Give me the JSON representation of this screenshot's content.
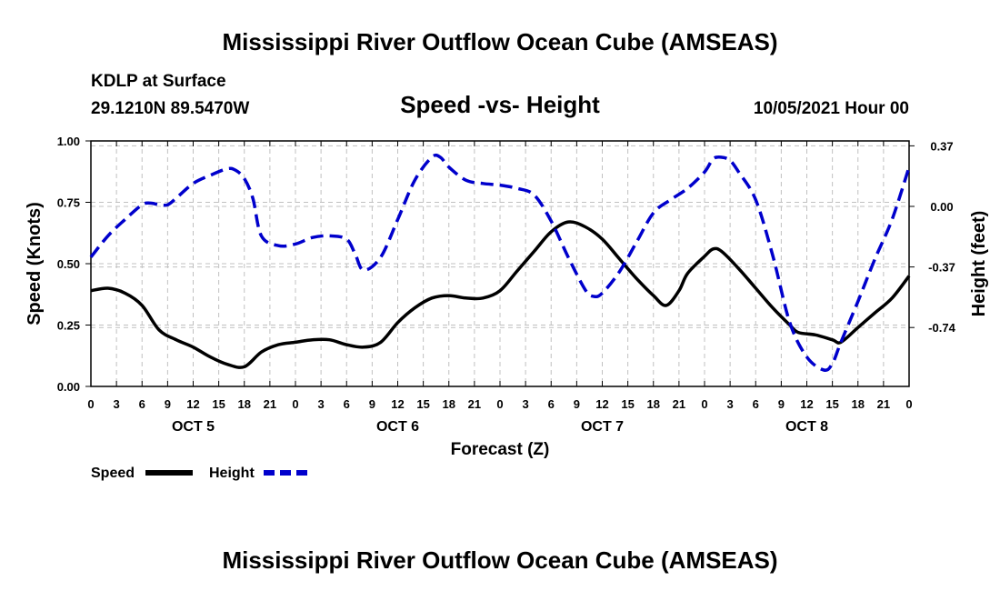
{
  "title_top": "Mississippi River Outflow Ocean Cube (AMSEAS)",
  "title_bottom": "Mississippi River Outflow Ocean Cube (AMSEAS)",
  "station": "KDLP at Surface",
  "coords": "29.1210N  89.5470W",
  "subtitle": "Speed -vs- Height",
  "datetime": "10/05/2021 Hour 00",
  "colors": {
    "speed": "#000000",
    "height": "#0000cc",
    "grid": "#c0c0c0"
  },
  "chart_data": {
    "type": "line",
    "title": "Speed -vs- Height",
    "xlabel": "Forecast (Z)",
    "ylabel_left": "Speed (Knots)",
    "ylabel_right": "Height (feet)",
    "x_unit": "hours from OCT 5 00Z",
    "xlim": [
      0,
      96
    ],
    "ylim_left": [
      0,
      1
    ],
    "ylim_right": [
      -1.1,
      0.4
    ],
    "left_ticks": [
      {
        "value": 0.0,
        "label": "0.00"
      },
      {
        "value": 0.25,
        "label": "0.25"
      },
      {
        "value": 0.5,
        "label": "0.50"
      },
      {
        "value": 0.75,
        "label": "0.75"
      },
      {
        "value": 1.0,
        "label": "1.00"
      }
    ],
    "right_ticks": [
      {
        "value": 0.37,
        "label": "0.37"
      },
      {
        "value": 0.0,
        "label": "0.00"
      },
      {
        "value": -0.37,
        "label": "-0.37"
      },
      {
        "value": -0.74,
        "label": "-0.74"
      }
    ],
    "x_ticks": [
      {
        "x": 0,
        "label": "0"
      },
      {
        "x": 3,
        "label": "3"
      },
      {
        "x": 6,
        "label": "6"
      },
      {
        "x": 9,
        "label": "9"
      },
      {
        "x": 12,
        "label": "12"
      },
      {
        "x": 15,
        "label": "15"
      },
      {
        "x": 18,
        "label": "18"
      },
      {
        "x": 21,
        "label": "21"
      },
      {
        "x": 24,
        "label": "0"
      },
      {
        "x": 27,
        "label": "3"
      },
      {
        "x": 30,
        "label": "6"
      },
      {
        "x": 33,
        "label": "9"
      },
      {
        "x": 36,
        "label": "12"
      },
      {
        "x": 39,
        "label": "15"
      },
      {
        "x": 42,
        "label": "18"
      },
      {
        "x": 45,
        "label": "21"
      },
      {
        "x": 48,
        "label": "0"
      },
      {
        "x": 51,
        "label": "3"
      },
      {
        "x": 54,
        "label": "6"
      },
      {
        "x": 57,
        "label": "9"
      },
      {
        "x": 60,
        "label": "12"
      },
      {
        "x": 63,
        "label": "15"
      },
      {
        "x": 66,
        "label": "18"
      },
      {
        "x": 69,
        "label": "21"
      },
      {
        "x": 72,
        "label": "0"
      },
      {
        "x": 75,
        "label": "3"
      },
      {
        "x": 78,
        "label": "6"
      },
      {
        "x": 81,
        "label": "9"
      },
      {
        "x": 84,
        "label": "12"
      },
      {
        "x": 87,
        "label": "15"
      },
      {
        "x": 90,
        "label": "18"
      },
      {
        "x": 93,
        "label": "21"
      },
      {
        "x": 96,
        "label": "0"
      }
    ],
    "day_labels": [
      {
        "x": 12,
        "label": "OCT 5"
      },
      {
        "x": 36,
        "label": "OCT 6"
      },
      {
        "x": 60,
        "label": "OCT 7"
      },
      {
        "x": 84,
        "label": "OCT 8"
      }
    ],
    "series": [
      {
        "name": "Speed",
        "axis": "left",
        "style": "solid",
        "points": [
          [
            0,
            0.39
          ],
          [
            2,
            0.4
          ],
          [
            4,
            0.38
          ],
          [
            6,
            0.33
          ],
          [
            8,
            0.23
          ],
          [
            10,
            0.19
          ],
          [
            12,
            0.16
          ],
          [
            14,
            0.12
          ],
          [
            16,
            0.09
          ],
          [
            18,
            0.08
          ],
          [
            20,
            0.14
          ],
          [
            22,
            0.17
          ],
          [
            24,
            0.18
          ],
          [
            26,
            0.19
          ],
          [
            28,
            0.19
          ],
          [
            30,
            0.17
          ],
          [
            32,
            0.16
          ],
          [
            34,
            0.18
          ],
          [
            36,
            0.26
          ],
          [
            38,
            0.32
          ],
          [
            40,
            0.36
          ],
          [
            42,
            0.37
          ],
          [
            44,
            0.36
          ],
          [
            46,
            0.36
          ],
          [
            48,
            0.39
          ],
          [
            50,
            0.47
          ],
          [
            52,
            0.55
          ],
          [
            54,
            0.63
          ],
          [
            56,
            0.67
          ],
          [
            58,
            0.65
          ],
          [
            60,
            0.6
          ],
          [
            62,
            0.52
          ],
          [
            64,
            0.44
          ],
          [
            66,
            0.37
          ],
          [
            67.5,
            0.33
          ],
          [
            69,
            0.39
          ],
          [
            70,
            0.46
          ],
          [
            72,
            0.53
          ],
          [
            73,
            0.56
          ],
          [
            74,
            0.55
          ],
          [
            76,
            0.48
          ],
          [
            78,
            0.4
          ],
          [
            80,
            0.32
          ],
          [
            82,
            0.25
          ],
          [
            83,
            0.22
          ],
          [
            85,
            0.21
          ],
          [
            87,
            0.19
          ],
          [
            88,
            0.18
          ],
          [
            90,
            0.24
          ],
          [
            92,
            0.3
          ],
          [
            94,
            0.36
          ],
          [
            96,
            0.45
          ]
        ]
      },
      {
        "name": "Height",
        "axis": "right",
        "style": "dashed",
        "points": [
          [
            0,
            -0.31
          ],
          [
            2,
            -0.18
          ],
          [
            4,
            -0.08
          ],
          [
            6,
            0.01
          ],
          [
            7,
            0.02
          ],
          [
            8,
            0.01
          ],
          [
            9,
            0.01
          ],
          [
            10,
            0.05
          ],
          [
            12,
            0.14
          ],
          [
            14,
            0.19
          ],
          [
            16,
            0.23
          ],
          [
            17,
            0.22
          ],
          [
            18,
            0.17
          ],
          [
            19,
            0.05
          ],
          [
            20,
            -0.18
          ],
          [
            22,
            -0.24
          ],
          [
            24,
            -0.23
          ],
          [
            26,
            -0.19
          ],
          [
            28,
            -0.18
          ],
          [
            30,
            -0.2
          ],
          [
            31,
            -0.29
          ],
          [
            32,
            -0.39
          ],
          [
            34,
            -0.31
          ],
          [
            36,
            -0.08
          ],
          [
            38,
            0.16
          ],
          [
            40,
            0.3
          ],
          [
            41,
            0.3
          ],
          [
            42,
            0.24
          ],
          [
            44,
            0.16
          ],
          [
            46,
            0.14
          ],
          [
            48,
            0.13
          ],
          [
            50,
            0.11
          ],
          [
            52,
            0.07
          ],
          [
            54,
            -0.09
          ],
          [
            56,
            -0.31
          ],
          [
            58,
            -0.51
          ],
          [
            59,
            -0.55
          ],
          [
            60,
            -0.53
          ],
          [
            62,
            -0.4
          ],
          [
            64,
            -0.22
          ],
          [
            66,
            -0.04
          ],
          [
            68,
            0.04
          ],
          [
            70,
            0.11
          ],
          [
            72,
            0.21
          ],
          [
            73,
            0.29
          ],
          [
            74,
            0.3
          ],
          [
            75,
            0.28
          ],
          [
            76,
            0.21
          ],
          [
            78,
            0.04
          ],
          [
            80,
            -0.3
          ],
          [
            82,
            -0.71
          ],
          [
            84,
            -0.92
          ],
          [
            86,
            -1.0
          ],
          [
            87,
            -0.96
          ],
          [
            88,
            -0.83
          ],
          [
            90,
            -0.58
          ],
          [
            92,
            -0.32
          ],
          [
            94,
            -0.08
          ],
          [
            96,
            0.24
          ]
        ]
      }
    ],
    "legend": [
      {
        "label": "Speed",
        "style": "solid"
      },
      {
        "label": "Height",
        "style": "dashed"
      }
    ],
    "legend_position": "bottom-left"
  }
}
